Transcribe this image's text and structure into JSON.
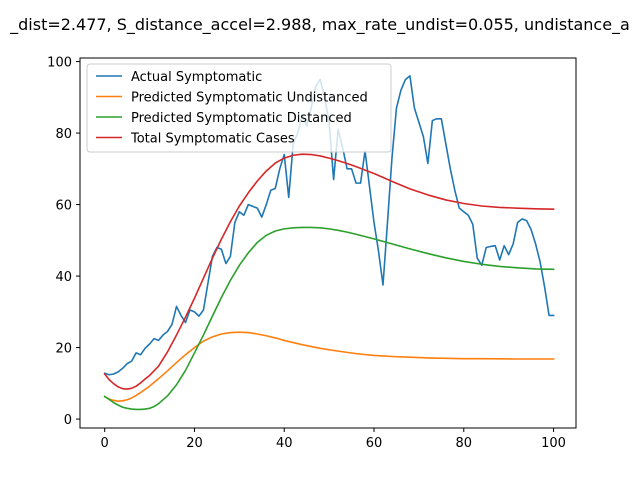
{
  "chart_data": {
    "type": "line",
    "title": "_dist=2.477, S_distance_accel=2.988, max_rate_undist=0.055, undistance_a",
    "xlabel": "",
    "ylabel": "",
    "xlim": [
      -5.5,
      105
    ],
    "ylim": [
      -2.5,
      101
    ],
    "x_ticks": [
      0,
      20,
      40,
      60,
      80,
      100
    ],
    "y_ticks": [
      0,
      20,
      40,
      60,
      80,
      100
    ],
    "grid": false,
    "legend_position": "top-left",
    "series": [
      {
        "name": "Actual Symptomatic",
        "color": "#1f77b4",
        "x": [
          0,
          1,
          2,
          3,
          4,
          5,
          6,
          7,
          8,
          9,
          10,
          11,
          12,
          13,
          14,
          15,
          16,
          17,
          18,
          19,
          20,
          21,
          22,
          23,
          24,
          25,
          26,
          27,
          28,
          29,
          30,
          31,
          32,
          33,
          34,
          35,
          36,
          37,
          38,
          39,
          40,
          41,
          42,
          43,
          44,
          45,
          46,
          47,
          48,
          49,
          50,
          51,
          52,
          53,
          54,
          55,
          56,
          57,
          58,
          59,
          60,
          61,
          62,
          63,
          64,
          65,
          66,
          67,
          68,
          69,
          70,
          71,
          72,
          73,
          74,
          75,
          76,
          77,
          78,
          79,
          80,
          81,
          82,
          83,
          84,
          85,
          86,
          87,
          88,
          89,
          90,
          91,
          92,
          93,
          94,
          95,
          96,
          97,
          98,
          99,
          100
        ],
        "values": [
          12.8,
          12.4,
          12.6,
          13.2,
          14.2,
          15.5,
          16.2,
          18.5,
          18.0,
          19.8,
          21.0,
          22.5,
          22.0,
          23.5,
          24.5,
          26.5,
          31.5,
          29.0,
          27.0,
          30.5,
          30.0,
          28.8,
          30.5,
          38.0,
          45.5,
          48.0,
          47.5,
          43.5,
          45.5,
          55.0,
          58.0,
          57.0,
          60.0,
          59.5,
          59.0,
          56.5,
          60.0,
          64.0,
          64.5,
          70.0,
          74.0,
          62.0,
          77.0,
          80.0,
          85.0,
          82.0,
          87.0,
          93.0,
          95.0,
          90.0,
          83.0,
          67.0,
          81.0,
          76.0,
          70.0,
          70.0,
          66.0,
          66.0,
          75.0,
          65.0,
          55.0,
          47.0,
          37.5,
          55.0,
          73.0,
          87.0,
          92.0,
          95.0,
          96.0,
          87.0,
          83.0,
          79.0,
          71.5,
          83.5,
          84.0,
          84.0,
          77.0,
          70.0,
          64.0,
          59.0,
          58.0,
          57.0,
          54.5,
          45.0,
          43.0,
          48.0,
          48.3,
          48.5,
          44.5,
          48.5,
          46.0,
          49.0,
          55.0,
          56.0,
          55.5,
          53.0,
          49.0,
          44.0,
          37.0,
          29.0,
          29.0
        ]
      },
      {
        "name": "Predicted Symptomatic Undistanced",
        "color": "#ff7f0e",
        "x": [
          0,
          1,
          2,
          3,
          4,
          5,
          6,
          7,
          8,
          10,
          12,
          14,
          16,
          18,
          20,
          22,
          24,
          26,
          28,
          30,
          32,
          34,
          36,
          38,
          40,
          44,
          48,
          52,
          56,
          60,
          64,
          68,
          72,
          76,
          80,
          84,
          88,
          92,
          96,
          100
        ],
        "values": [
          6.3,
          5.6,
          5.2,
          5.0,
          5.1,
          5.4,
          5.9,
          6.6,
          7.4,
          9.2,
          11.3,
          13.5,
          15.8,
          18.0,
          20.0,
          21.8,
          23.0,
          23.8,
          24.2,
          24.3,
          24.2,
          23.8,
          23.3,
          22.7,
          22.0,
          20.8,
          19.8,
          19.0,
          18.3,
          17.8,
          17.5,
          17.3,
          17.1,
          17.0,
          16.9,
          16.9,
          16.85,
          16.8,
          16.8,
          16.8
        ]
      },
      {
        "name": "Predicted Symptomatic Distanced",
        "color": "#2ca02c",
        "x": [
          0,
          1,
          2,
          3,
          4,
          5,
          6,
          7,
          8,
          9,
          10,
          11,
          12,
          14,
          16,
          18,
          20,
          22,
          24,
          26,
          28,
          30,
          32,
          34,
          36,
          38,
          40,
          42,
          44,
          46,
          48,
          50,
          52,
          54,
          56,
          60,
          64,
          68,
          72,
          76,
          80,
          84,
          88,
          92,
          96,
          100
        ],
        "values": [
          6.3,
          5.5,
          4.6,
          3.9,
          3.3,
          3.0,
          2.8,
          2.7,
          2.7,
          2.8,
          3.0,
          3.5,
          4.3,
          6.5,
          9.6,
          13.6,
          18.5,
          23.5,
          28.8,
          34.0,
          38.8,
          43.0,
          46.5,
          49.4,
          51.4,
          52.6,
          53.2,
          53.5,
          53.6,
          53.6,
          53.5,
          53.2,
          52.8,
          52.3,
          51.7,
          50.4,
          49.0,
          47.6,
          46.3,
          45.1,
          44.1,
          43.3,
          42.7,
          42.3,
          42.0,
          41.9
        ]
      },
      {
        "name": "Total Symptomatic Cases",
        "color": "#d62728",
        "x": [
          0,
          1,
          2,
          3,
          4,
          5,
          6,
          7,
          8,
          9,
          10,
          12,
          14,
          16,
          18,
          20,
          22,
          24,
          26,
          28,
          30,
          32,
          34,
          36,
          38,
          40,
          42,
          44,
          46,
          48,
          50,
          52,
          54,
          56,
          60,
          64,
          68,
          72,
          76,
          80,
          84,
          88,
          92,
          96,
          100
        ],
        "values": [
          12.6,
          11.0,
          9.9,
          9.0,
          8.5,
          8.4,
          8.6,
          9.2,
          10.1,
          11.2,
          12.2,
          14.8,
          18.8,
          23.5,
          28.5,
          33.8,
          39.4,
          45.0,
          50.3,
          55.2,
          59.6,
          63.3,
          66.6,
          69.4,
          71.6,
          73.0,
          73.8,
          74.1,
          74.0,
          73.6,
          73.0,
          72.3,
          71.5,
          70.6,
          68.7,
          66.5,
          64.4,
          62.7,
          61.3,
          60.3,
          59.6,
          59.2,
          59.0,
          58.8,
          58.7
        ]
      }
    ]
  }
}
